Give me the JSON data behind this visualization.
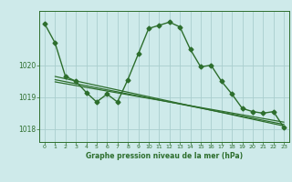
{
  "bg_color": "#ceeaea",
  "grid_color": "#aacece",
  "line_color": "#2d6e2d",
  "label_color": "#2d6e2d",
  "title": "Graphe pression niveau de la mer (hPa)",
  "ylim": [
    1017.6,
    1021.7
  ],
  "yticks": [
    1018,
    1019,
    1020
  ],
  "xlim": [
    -0.5,
    23.5
  ],
  "xticks": [
    0,
    1,
    2,
    3,
    4,
    5,
    6,
    7,
    8,
    9,
    10,
    11,
    12,
    13,
    14,
    15,
    16,
    17,
    18,
    19,
    20,
    21,
    22,
    23
  ],
  "series": [
    {
      "x": [
        0,
        1,
        2,
        3,
        4,
        5,
        6,
        7,
        8,
        9,
        10,
        11,
        12,
        13,
        14,
        15,
        16,
        17,
        18,
        19,
        20,
        21,
        22,
        23
      ],
      "y": [
        1021.3,
        1020.7,
        1019.65,
        1019.5,
        1019.15,
        1018.85,
        1019.1,
        1018.85,
        1019.55,
        1020.35,
        1021.15,
        1021.25,
        1021.35,
        1021.2,
        1020.5,
        1019.95,
        1020.0,
        1019.5,
        1019.1,
        1018.65,
        1018.55,
        1018.5,
        1018.55,
        1018.05
      ],
      "marker": "D",
      "markersize": 2.5,
      "linewidth": 1.0
    },
    {
      "x": [
        1,
        23
      ],
      "y": [
        1019.65,
        1018.1
      ],
      "marker": null,
      "linewidth": 0.9
    },
    {
      "x": [
        1,
        23
      ],
      "y": [
        1019.55,
        1018.15
      ],
      "marker": null,
      "linewidth": 0.9
    },
    {
      "x": [
        1,
        23
      ],
      "y": [
        1019.48,
        1018.22
      ],
      "marker": null,
      "linewidth": 0.9
    }
  ],
  "figwidth": 3.2,
  "figheight": 2.0,
  "dpi": 100
}
